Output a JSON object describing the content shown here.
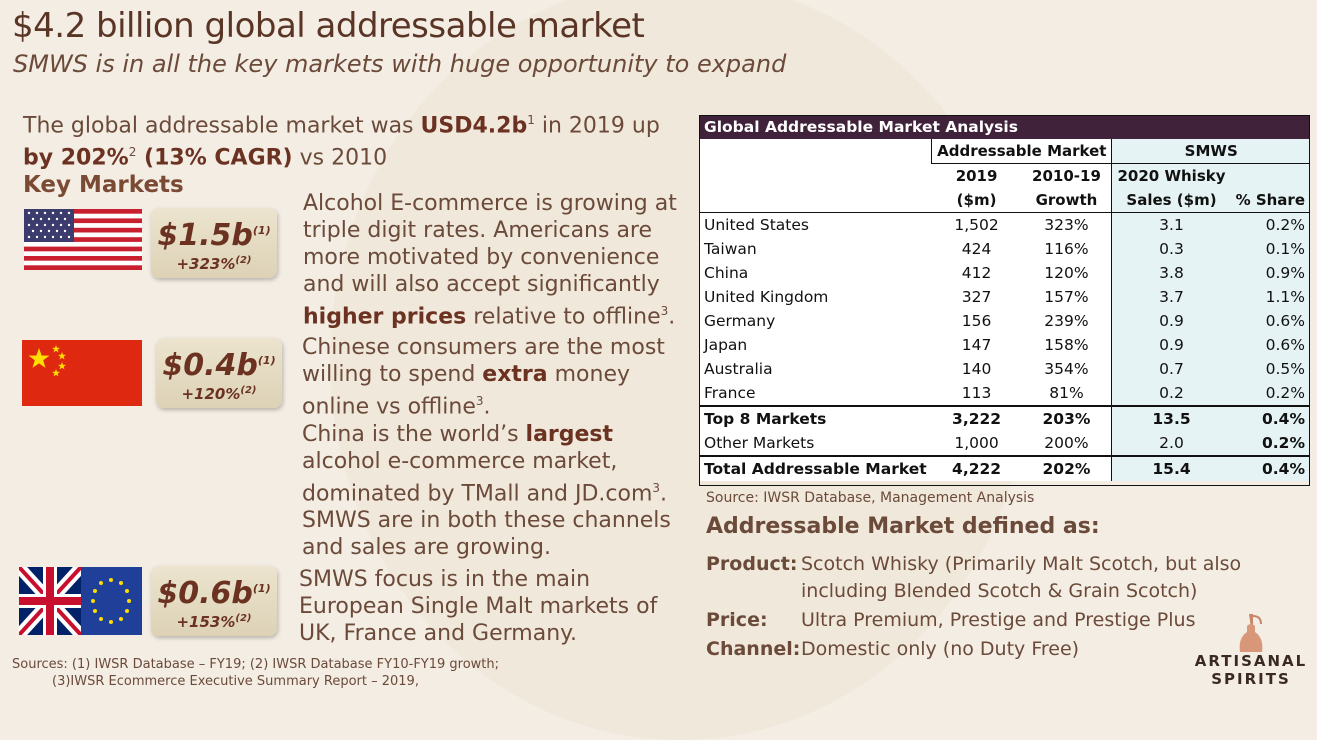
{
  "title": "$4.2 billion global addressable market",
  "subtitle": "SMWS is in all the key markets with huge opportunity to expand",
  "intro": {
    "p1": "The global addressable market was ",
    "b1": "USD4.2b",
    "s1": "1",
    "p2": " in 2019 up ",
    "b2": "by 202%",
    "s2": "2",
    "b3": " (13% CAGR)",
    "p3": " vs 2010"
  },
  "key_markets_label": "Key Markets",
  "markets": [
    {
      "flag": "us-flag-icon",
      "value": "$1.5b",
      "value_sup": "(1)",
      "growth": "+323%",
      "growth_sup": "(2)",
      "text1": "Alcohol E-commerce is growing at triple digit rates. Americans are more motivated by convenience and will also accept significantly ",
      "bold1": "higher prices",
      "text2": " relative to offline",
      "sup": "3",
      "text3": "."
    },
    {
      "flag": "china-flag-icon",
      "value": "$0.4b",
      "value_sup": "(1)",
      "growth": "+120%",
      "growth_sup": "(2)",
      "text1": "Chinese consumers are the most willing to spend ",
      "bold1": "extra",
      "text2": " money online vs offline",
      "sup": "3",
      "text3": ".",
      "p2_text1": "China is the world’s ",
      "p2_bold": "largest",
      "p2_text2": " alcohol e-commerce market, dominated by TMall and JD.com",
      "p2_sup": "3",
      "p2_text3": ".  SMWS are in both these channels and sales are growing."
    },
    {
      "flag": "uk-eu-flag-icon",
      "value": "$0.6b",
      "value_sup": "(1)",
      "growth": "+153%",
      "growth_sup": "(2)",
      "text1": "SMWS focus is in the main European Single Malt markets of UK, France and Germany."
    }
  ],
  "sources": {
    "line1": "Sources:  (1) IWSR Database – FY19; (2) IWSR Database FY10-FY19 growth;",
    "line2": "(3)IWSR Ecommerce Executive Summary Report – 2019,"
  },
  "table": {
    "title": "Global Addressable Market Analysis",
    "group1": "Addressable Market",
    "group2": "SMWS",
    "col_2019_a": "2019",
    "col_2019_b": "($m)",
    "col_growth_a": "2010-19",
    "col_growth_b": "Growth",
    "col_sales_a": "2020 Whisky",
    "col_sales_b": "Sales ($m)",
    "col_share": "% Share",
    "rows": [
      {
        "name": "United States",
        "m2019": "1,502",
        "growth": "323%",
        "sales": "3.1",
        "share": "0.2%"
      },
      {
        "name": "Taiwan",
        "m2019": "424",
        "growth": "116%",
        "sales": "0.3",
        "share": "0.1%"
      },
      {
        "name": "China",
        "m2019": "412",
        "growth": "120%",
        "sales": "3.8",
        "share": "0.9%"
      },
      {
        "name": "United Kingdom",
        "m2019": "327",
        "growth": "157%",
        "sales": "3.7",
        "share": "1.1%"
      },
      {
        "name": "Germany",
        "m2019": "156",
        "growth": "239%",
        "sales": "0.9",
        "share": "0.6%"
      },
      {
        "name": "Japan",
        "m2019": "147",
        "growth": "158%",
        "sales": "0.9",
        "share": "0.6%"
      },
      {
        "name": "Australia",
        "m2019": "140",
        "growth": "354%",
        "sales": "0.7",
        "share": "0.5%"
      },
      {
        "name": "France",
        "m2019": "113",
        "growth": "81%",
        "sales": "0.2",
        "share": "0.2%"
      }
    ],
    "top8": {
      "name": "Top 8 Markets",
      "m2019": "3,222",
      "growth": "203%",
      "sales": "13.5",
      "share": "0.4%"
    },
    "other": {
      "name": "Other Markets",
      "m2019": "1,000",
      "growth": "200%",
      "sales": "2.0",
      "share": "0.2%"
    },
    "total": {
      "name": "Total Addressable Market",
      "m2019": "4,222",
      "growth": "202%",
      "sales": "15.4",
      "share": "0.4%"
    }
  },
  "table_source": "Source: IWSR Database, Management Analysis",
  "definition": {
    "title": "Addressable Market defined as:",
    "product_label": "Product:",
    "product_text": "Scotch Whisky (Primarily Malt Scotch, but also including Blended Scotch & Grain Scotch)",
    "price_label": "Price:",
    "price_text": "Ultra Premium, Prestige and Prestige Plus",
    "channel_label": "Channel:",
    "channel_text": "Domestic only (no Duty Free)"
  },
  "logo": {
    "line1": "ARTISANAL",
    "line2": "SPIRITS"
  },
  "colors": {
    "table_header": "#40233a",
    "smws_col_bg": "#e5f3f5",
    "heading_brown": "#6b3222",
    "background": "#f3ede3"
  }
}
